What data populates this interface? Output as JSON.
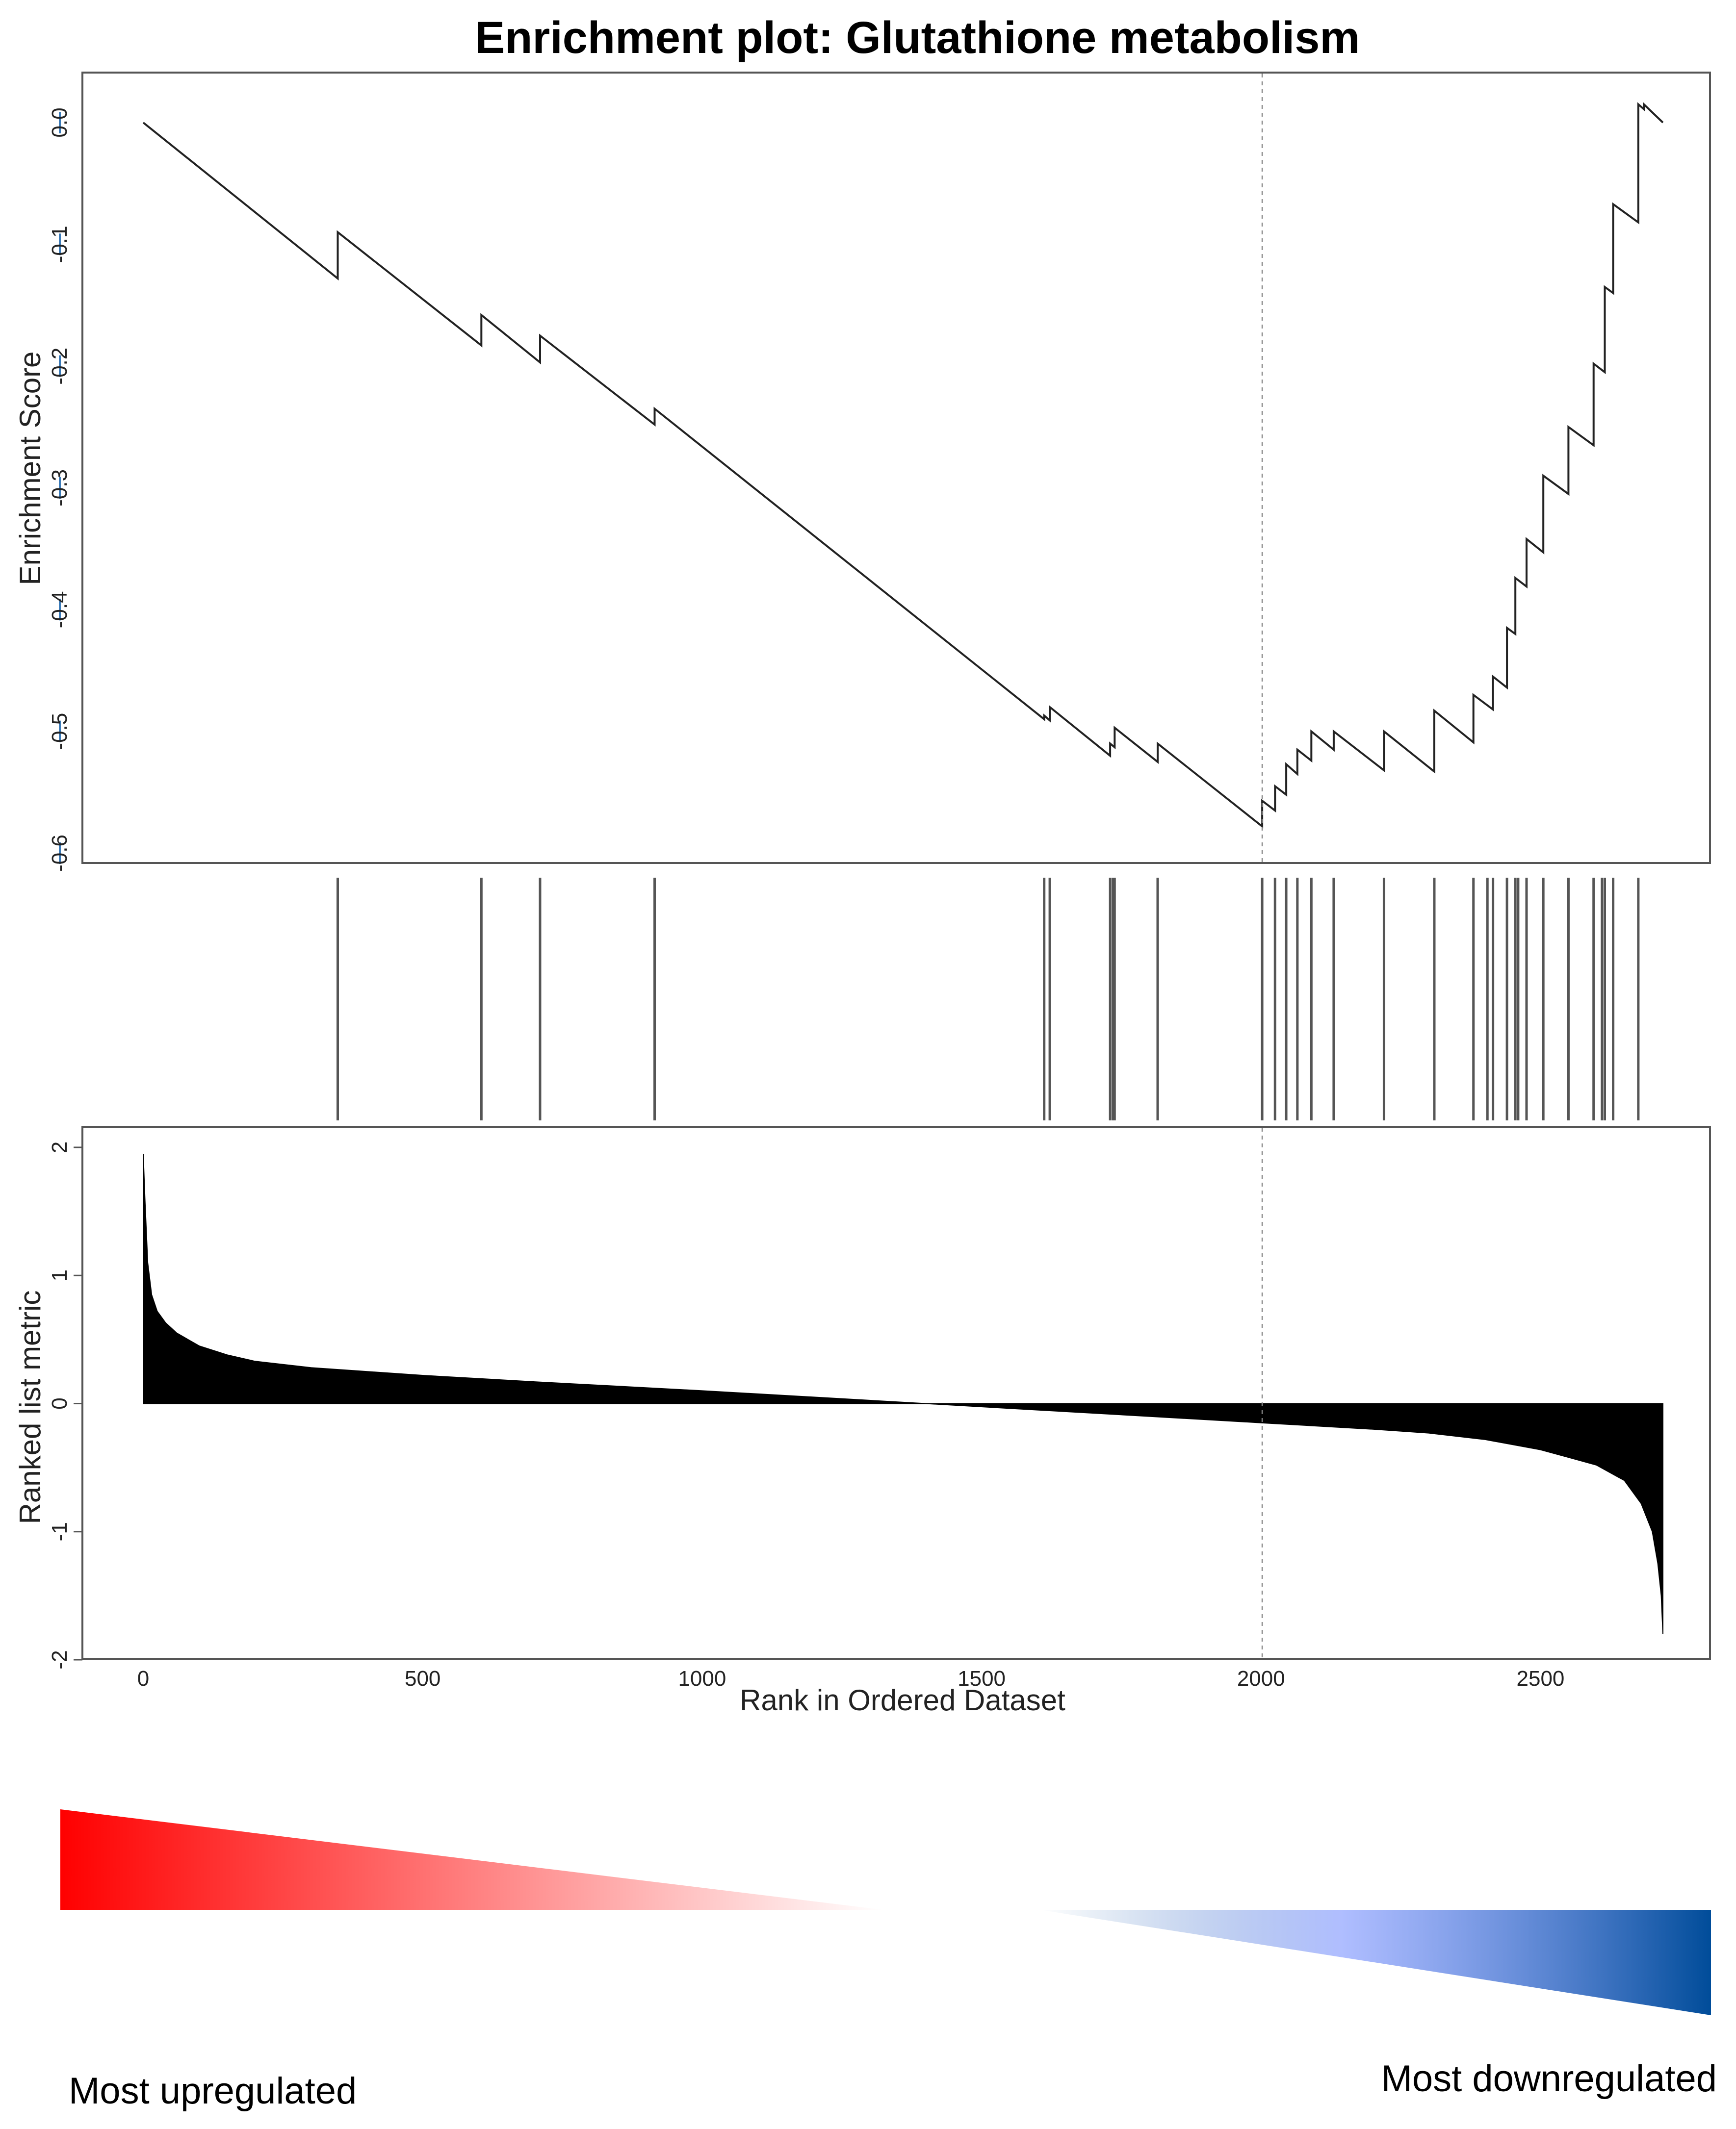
{
  "chart_data": {
    "type": "line",
    "title": "Enrichment plot: Glutathione metabolism",
    "n_genes": 2719,
    "es_panel": {
      "ylabel": "Enrichment Score",
      "ylim": [
        -0.6,
        0.0
      ],
      "yticks": [
        0.0,
        -0.1,
        -0.2,
        -0.3,
        -0.4,
        -0.5,
        -0.6
      ],
      "ytick_labels": [
        "0.0",
        "-0.1",
        "-0.2",
        "-0.3",
        "-0.4",
        "-0.5",
        "-0.6"
      ],
      "series": [
        {
          "x": [
            0,
            348,
            348,
            605,
            605,
            710,
            710,
            915,
            915,
            1612,
            1612,
            1622,
            1622,
            1730,
            1730,
            1738,
            1738,
            1815,
            1815,
            2002,
            2002,
            2025,
            2025,
            2045,
            2045,
            2065,
            2065,
            2090,
            2090,
            2130,
            2130,
            2220,
            2220,
            2310,
            2310,
            2380,
            2380,
            2415,
            2415,
            2440,
            2440,
            2455,
            2455,
            2475,
            2475,
            2505,
            2505,
            2550,
            2550,
            2595,
            2595,
            2615,
            2615,
            2630,
            2630,
            2675,
            2675,
            2685,
            2685,
            2719
          ],
          "y": [
            0.0,
            -0.128,
            -0.09,
            -0.183,
            -0.158,
            -0.197,
            -0.175,
            -0.248,
            -0.235,
            -0.49,
            -0.487,
            -0.491,
            -0.48,
            -0.52,
            -0.51,
            -0.513,
            -0.497,
            -0.525,
            -0.51,
            -0.578,
            -0.557,
            -0.565,
            -0.545,
            -0.552,
            -0.527,
            -0.535,
            -0.515,
            -0.524,
            -0.5,
            -0.515,
            -0.5,
            -0.532,
            -0.5,
            -0.533,
            -0.483,
            -0.509,
            -0.47,
            -0.482,
            -0.455,
            -0.464,
            -0.415,
            -0.42,
            -0.374,
            -0.381,
            -0.342,
            -0.353,
            -0.29,
            -0.305,
            -0.25,
            -0.265,
            -0.198,
            -0.205,
            -0.135,
            -0.14,
            -0.067,
            -0.082,
            0.015,
            0.011,
            0.015,
            0.0
          ]
        }
      ],
      "dashed_vline_x": 2002
    },
    "hit_positions": [
      348,
      605,
      710,
      915,
      1612,
      1622,
      1730,
      1735,
      1738,
      1815,
      2002,
      2025,
      2045,
      2065,
      2090,
      2130,
      2220,
      2310,
      2380,
      2405,
      2415,
      2440,
      2455,
      2460,
      2475,
      2505,
      2550,
      2595,
      2610,
      2615,
      2630,
      2675
    ],
    "metric_panel": {
      "ylabel": "Ranked list metric",
      "ylim": [
        -2,
        2
      ],
      "yticks": [
        2,
        1,
        0,
        -1,
        -2
      ],
      "ytick_labels": [
        "2",
        "1",
        "0",
        "-1",
        "-2"
      ],
      "area_points_x": [
        0,
        3,
        8,
        15,
        25,
        40,
        60,
        100,
        150,
        200,
        300,
        500,
        700,
        1000,
        1200,
        1400,
        1600,
        1800,
        2000,
        2200,
        2300,
        2400,
        2500,
        2550,
        2600,
        2650,
        2680,
        2700,
        2710,
        2716,
        2719
      ],
      "area_points_y": [
        1.95,
        1.6,
        1.1,
        0.85,
        0.72,
        0.63,
        0.55,
        0.45,
        0.38,
        0.33,
        0.28,
        0.22,
        0.17,
        0.1,
        0.05,
        0.0,
        -0.05,
        -0.1,
        -0.15,
        -0.2,
        -0.23,
        -0.28,
        -0.36,
        -0.42,
        -0.48,
        -0.6,
        -0.78,
        -1.0,
        -1.25,
        -1.5,
        -1.8
      ],
      "dashed_vline_x": 2002
    },
    "xaxis": {
      "xlabel": "Rank in Ordered Dataset",
      "xlim": [
        0,
        2719
      ],
      "xticks": [
        0,
        500,
        1000,
        1500,
        2000,
        2500
      ],
      "xtick_labels": [
        "0",
        "500",
        "1000",
        "1500",
        "2000",
        "2500"
      ]
    },
    "gradient_bar": {
      "left_label": "Most upregulated",
      "right_label": "Most downregulated",
      "left_color": "#ff0000",
      "right_color": "#004c99"
    }
  }
}
